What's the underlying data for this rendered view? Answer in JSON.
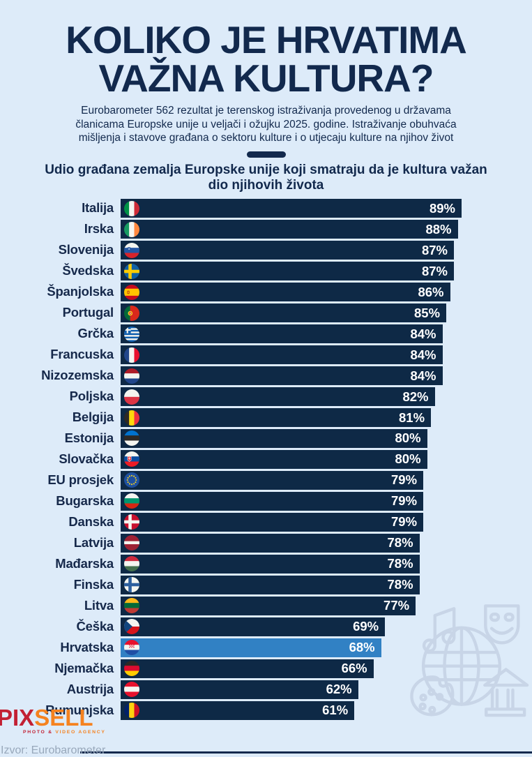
{
  "page": {
    "title_line1": "KOLIKO JE HRVATIMA",
    "title_line2": "VAŽNA KULTURA?",
    "intro": "Eurobarometer 562 rezultat je terenskog istraživanja provedenog u državama članicama Europske unije u veljači i ožujku 2025. godine. Istraživanje obuhvaća mišljenja i stavove građana o sektoru kulture i o utjecaju kulture na njihov život",
    "chart_heading": "Udio građana zemalja Europske unije koji smatraju da je kultura važan dio njihovih života"
  },
  "chart_data": {
    "type": "bar",
    "orientation": "horizontal",
    "title": "Udio građana zemalja Europske unije koji smatraju da je kultura važan dio njihovih života",
    "categories": [
      "Italija",
      "Irska",
      "Slovenija",
      "Švedska",
      "Španjolska",
      "Portugal",
      "Grčka",
      "Francuska",
      "Nizozemska",
      "Poljska",
      "Belgija",
      "Estonija",
      "Slovačka",
      "EU prosjek",
      "Bugarska",
      "Danska",
      "Latvija",
      "Mađarska",
      "Finska",
      "Litva",
      "Češka",
      "Hrvatska",
      "Njemačka",
      "Austrija",
      "Rumunjska"
    ],
    "values": [
      89,
      88,
      87,
      87,
      86,
      85,
      84,
      84,
      84,
      82,
      81,
      80,
      80,
      79,
      79,
      79,
      78,
      78,
      78,
      77,
      69,
      68,
      66,
      62,
      61
    ],
    "value_labels": [
      "89%",
      "88%",
      "87%",
      "87%",
      "86%",
      "85%",
      "84%",
      "84%",
      "84%",
      "82%",
      "81%",
      "80%",
      "80%",
      "79%",
      "79%",
      "79%",
      "78%",
      "78%",
      "78%",
      "77%",
      "69%",
      "68%",
      "66%",
      "62%",
      "61%"
    ],
    "flags": [
      "italy",
      "ireland",
      "slovenia",
      "sweden",
      "spain",
      "portugal",
      "greece",
      "france",
      "netherlands",
      "poland",
      "belgium",
      "estonia",
      "slovakia",
      "eu",
      "bulgaria",
      "denmark",
      "latvia",
      "hungary",
      "finland",
      "lithuania",
      "czechia",
      "croatia",
      "germany",
      "austria",
      "romania"
    ],
    "highlight_category": "Hrvatska",
    "highlight_index": 21,
    "xlim": [
      0,
      89
    ],
    "value_suffix": "%",
    "grid": false,
    "legend": "none",
    "bar_color": "#0e2946",
    "highlight_color": "#3181c4"
  },
  "footer": {
    "logo_part1": "PIX",
    "logo_part2": "SELL",
    "tagline_part1": "PHOTO &",
    "tagline_part2": " VIDEO AGENCY",
    "source": "Izvor: Eurobarometer"
  },
  "colors": {
    "background": "#ddebf9",
    "navy_text": "#12294d",
    "bar": "#0e2946",
    "highlight": "#3181c4",
    "value_text": "#ffffff",
    "logo_red": "#c22033",
    "logo_orange": "#f5821f",
    "source_gray": "#98a8bb",
    "illustration": "#c8d5e7"
  },
  "decoration": {
    "icons": [
      "music-note-icon",
      "globe-icon",
      "theater-mask-icon",
      "paint-palette-icon",
      "museum-building-icon"
    ]
  }
}
